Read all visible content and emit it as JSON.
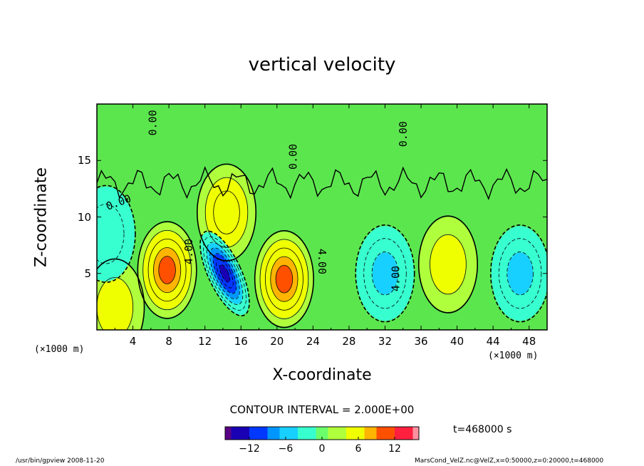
{
  "chart_data": {
    "type": "heatmap",
    "title": "vertical velocity",
    "xlabel": "X-coordinate",
    "ylabel": "Z-coordinate",
    "x_unit_label": "(×1000 m)",
    "xlim": [
      0,
      50
    ],
    "ylim": [
      0,
      20
    ],
    "x_ticks": [
      4,
      8,
      12,
      16,
      20,
      24,
      28,
      32,
      36,
      40,
      44,
      48
    ],
    "y_ticks": [
      5,
      10,
      15
    ],
    "contour_interval_text": "CONTOUR INTERVAL = 2.000E+00",
    "contour_labels": [
      "0.00",
      "4.00"
    ],
    "colorbar": {
      "range": [
        -16,
        16
      ],
      "ticks": [
        -12,
        -6,
        0,
        6,
        12
      ],
      "colors": [
        "#5a0086",
        "#1a00b4",
        "#0038ff",
        "#0096ff",
        "#18d0ff",
        "#38ffd0",
        "#6cff6c",
        "#b0ff3c",
        "#f0ff00",
        "#ffb400",
        "#ff5000",
        "#ff2040",
        "#ff90a0"
      ]
    },
    "features": [
      {
        "x": 7.8,
        "z": 5.3,
        "w": 9,
        "kind": "updraft"
      },
      {
        "x": 20.8,
        "z": 4.5,
        "w": 9,
        "kind": "updraft"
      },
      {
        "x": 39.0,
        "z": 5.8,
        "w": 4,
        "kind": "updraft"
      },
      {
        "x": 2.0,
        "z": 2.0,
        "w": 4,
        "kind": "updraft"
      },
      {
        "x": 14.4,
        "z": 10.4,
        "w": 6,
        "kind": "updraft"
      },
      {
        "x": 14.2,
        "z": 5.0,
        "w": -14,
        "kind": "downdraft"
      },
      {
        "x": 32.0,
        "z": 5.0,
        "w": -6,
        "kind": "downdraft"
      },
      {
        "x": 47.0,
        "z": 5.0,
        "w": -5,
        "kind": "downdraft"
      },
      {
        "x": 1.0,
        "z": 8.5,
        "w": -3,
        "kind": "downdraft"
      }
    ],
    "time_label": "t=468000 s"
  },
  "footer": {
    "left": "/usr/bin/gpview  2008-11-20",
    "right": "MarsCond_VelZ.nc@VelZ,x=0:50000,z=0:20000,t=468000"
  }
}
